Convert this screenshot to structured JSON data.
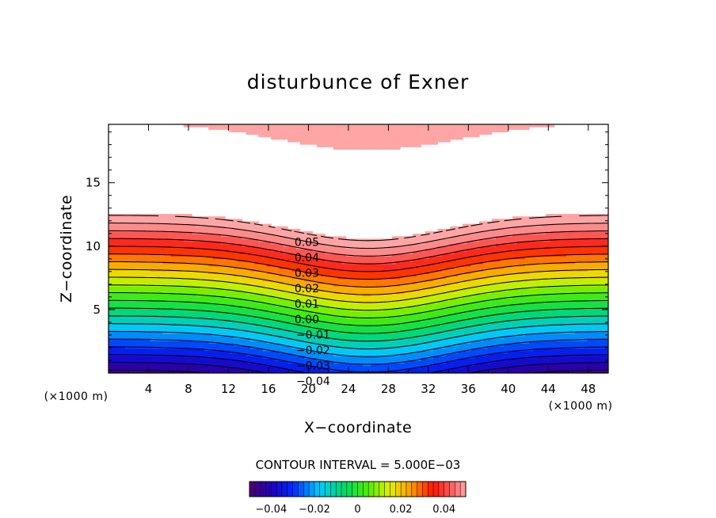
{
  "chart_data": {
    "type": "contour",
    "title": "disturbunce of Exner",
    "xlabel": "X−coordinate",
    "ylabel": "Z−coordinate",
    "x_unit": "(×1000 m)",
    "y_unit": "(×1000 m)",
    "xlim": [
      0,
      50
    ],
    "ylim": [
      0,
      19.6
    ],
    "x_ticks": [
      "4",
      "8",
      "12",
      "16",
      "20",
      "24",
      "28",
      "32",
      "36",
      "40",
      "44",
      "48"
    ],
    "y_ticks": [
      "5",
      "10",
      "15"
    ],
    "contour_interval_text": "CONTOUR INTERVAL = 5.000E−03",
    "contour_step": 0.005,
    "value_range": [
      -0.05,
      0.05
    ],
    "field_min": -0.047,
    "field_max": 0.06,
    "contour_labels": [
      {
        "text": "0.05",
        "value": 0.05
      },
      {
        "text": "0.04",
        "value": 0.04
      },
      {
        "text": "0.03",
        "value": 0.03
      },
      {
        "text": "0.02",
        "value": 0.02
      },
      {
        "text": "0.01",
        "value": 0.01
      },
      {
        "text": "0.00",
        "value": 0.0
      },
      {
        "text": "−0.01",
        "value": -0.01
      },
      {
        "text": "−0.02",
        "value": -0.02
      },
      {
        "text": "−0.03",
        "value": -0.03
      },
      {
        "text": "−0.04",
        "value": -0.04
      }
    ],
    "colorbar_ticks": [
      {
        "text": "−0.04",
        "value": -0.04
      },
      {
        "text": "−0.02",
        "value": -0.02
      },
      {
        "text": "0",
        "value": 0
      },
      {
        "text": "0.02",
        "value": 0.02
      },
      {
        "text": "0.04",
        "value": 0.04
      }
    ],
    "colormap": "rainbow (purple → blue → cyan → green → yellow → orange → red → pink)",
    "grid": false,
    "legend": "colorbar bottom-center"
  }
}
